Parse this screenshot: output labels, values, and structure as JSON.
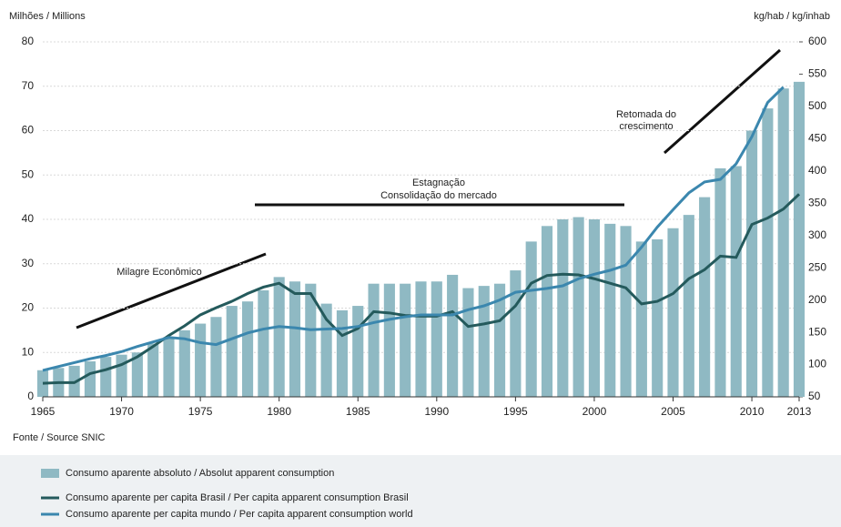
{
  "chart_data": {
    "type": "bar",
    "y_label": "Milhões / Millions",
    "y2_label": "kg/hab / kg/inhab",
    "source": "Fonte / Source SNIC",
    "annotations": [
      "Milagre Econômico",
      "Estagnação",
      "Consolidação do mercado",
      "Retomada do",
      "crescimento"
    ],
    "x": [
      1965,
      1966,
      1967,
      1968,
      1969,
      1970,
      1971,
      1972,
      1973,
      1974,
      1975,
      1976,
      1977,
      1978,
      1979,
      1980,
      1981,
      1982,
      1983,
      1984,
      1985,
      1986,
      1987,
      1988,
      1989,
      1990,
      1991,
      1992,
      1993,
      1994,
      1995,
      1996,
      1997,
      1998,
      1999,
      2000,
      2001,
      2002,
      2003,
      2004,
      2005,
      2006,
      2007,
      2008,
      2009,
      2010,
      2011,
      2012,
      2013
    ],
    "xlim": [
      1965,
      2013
    ],
    "xticks": [
      1965,
      1970,
      1975,
      1980,
      1985,
      1990,
      1995,
      2000,
      2005,
      2010,
      2013
    ],
    "ylim": [
      0,
      80
    ],
    "yticks": [
      0,
      10,
      20,
      30,
      40,
      50,
      60,
      70,
      80
    ],
    "y2lim": [
      50,
      600
    ],
    "y2ticks": [
      50,
      100,
      150,
      200,
      250,
      300,
      350,
      400,
      450,
      500,
      550,
      600
    ],
    "series": [
      {
        "name": "Consumo aparente absoluto / Absolut apparent consumption",
        "type": "bar",
        "color": "#8fb9c3",
        "values": [
          6,
          6.5,
          7,
          8,
          9,
          9.5,
          10,
          12,
          13.5,
          15,
          16.5,
          18,
          20.5,
          21.5,
          24,
          27,
          26,
          25.5,
          21,
          19.5,
          20.5,
          25.5,
          25.5,
          25.5,
          26,
          26,
          27.5,
          24.5,
          25,
          25.5,
          28.5,
          35,
          38.5,
          40,
          40.5,
          40,
          39,
          38.5,
          35,
          35.5,
          38,
          41,
          45,
          51.5,
          52,
          60,
          65,
          69.5,
          71
        ]
      },
      {
        "name": "Consumo aparente per capita Brasil / Per capita apparent consumption Brasil",
        "type": "line",
        "axis": "y2",
        "color": "#245a5c",
        "values": [
          71,
          72,
          72,
          86,
          92,
          100,
          112,
          128,
          145,
          160,
          177,
          188,
          198,
          210,
          220,
          226,
          210,
          210,
          170,
          145,
          156,
          182,
          180,
          176,
          175,
          175,
          182,
          159,
          163,
          168,
          191,
          226,
          238,
          240,
          239,
          233,
          226,
          219,
          194,
          198,
          210,
          233,
          247,
          268,
          266,
          317,
          327,
          341,
          364
        ]
      },
      {
        "name": "Consumo aparente per capita mundo / Per capita apparent consumption world",
        "type": "line",
        "axis": "y2",
        "color": "#3b87ae",
        "values": [
          91,
          97,
          103,
          109,
          114,
          120,
          128,
          135,
          142,
          140,
          134,
          131,
          140,
          149,
          155,
          159,
          157,
          154,
          155,
          156,
          159,
          165,
          170,
          174,
          177,
          177,
          177,
          185,
          191,
          200,
          212,
          215,
          218,
          222,
          233,
          240,
          246,
          254,
          282,
          313,
          340,
          366,
          383,
          387,
          411,
          453,
          506,
          530,
          null
        ]
      }
    ]
  }
}
